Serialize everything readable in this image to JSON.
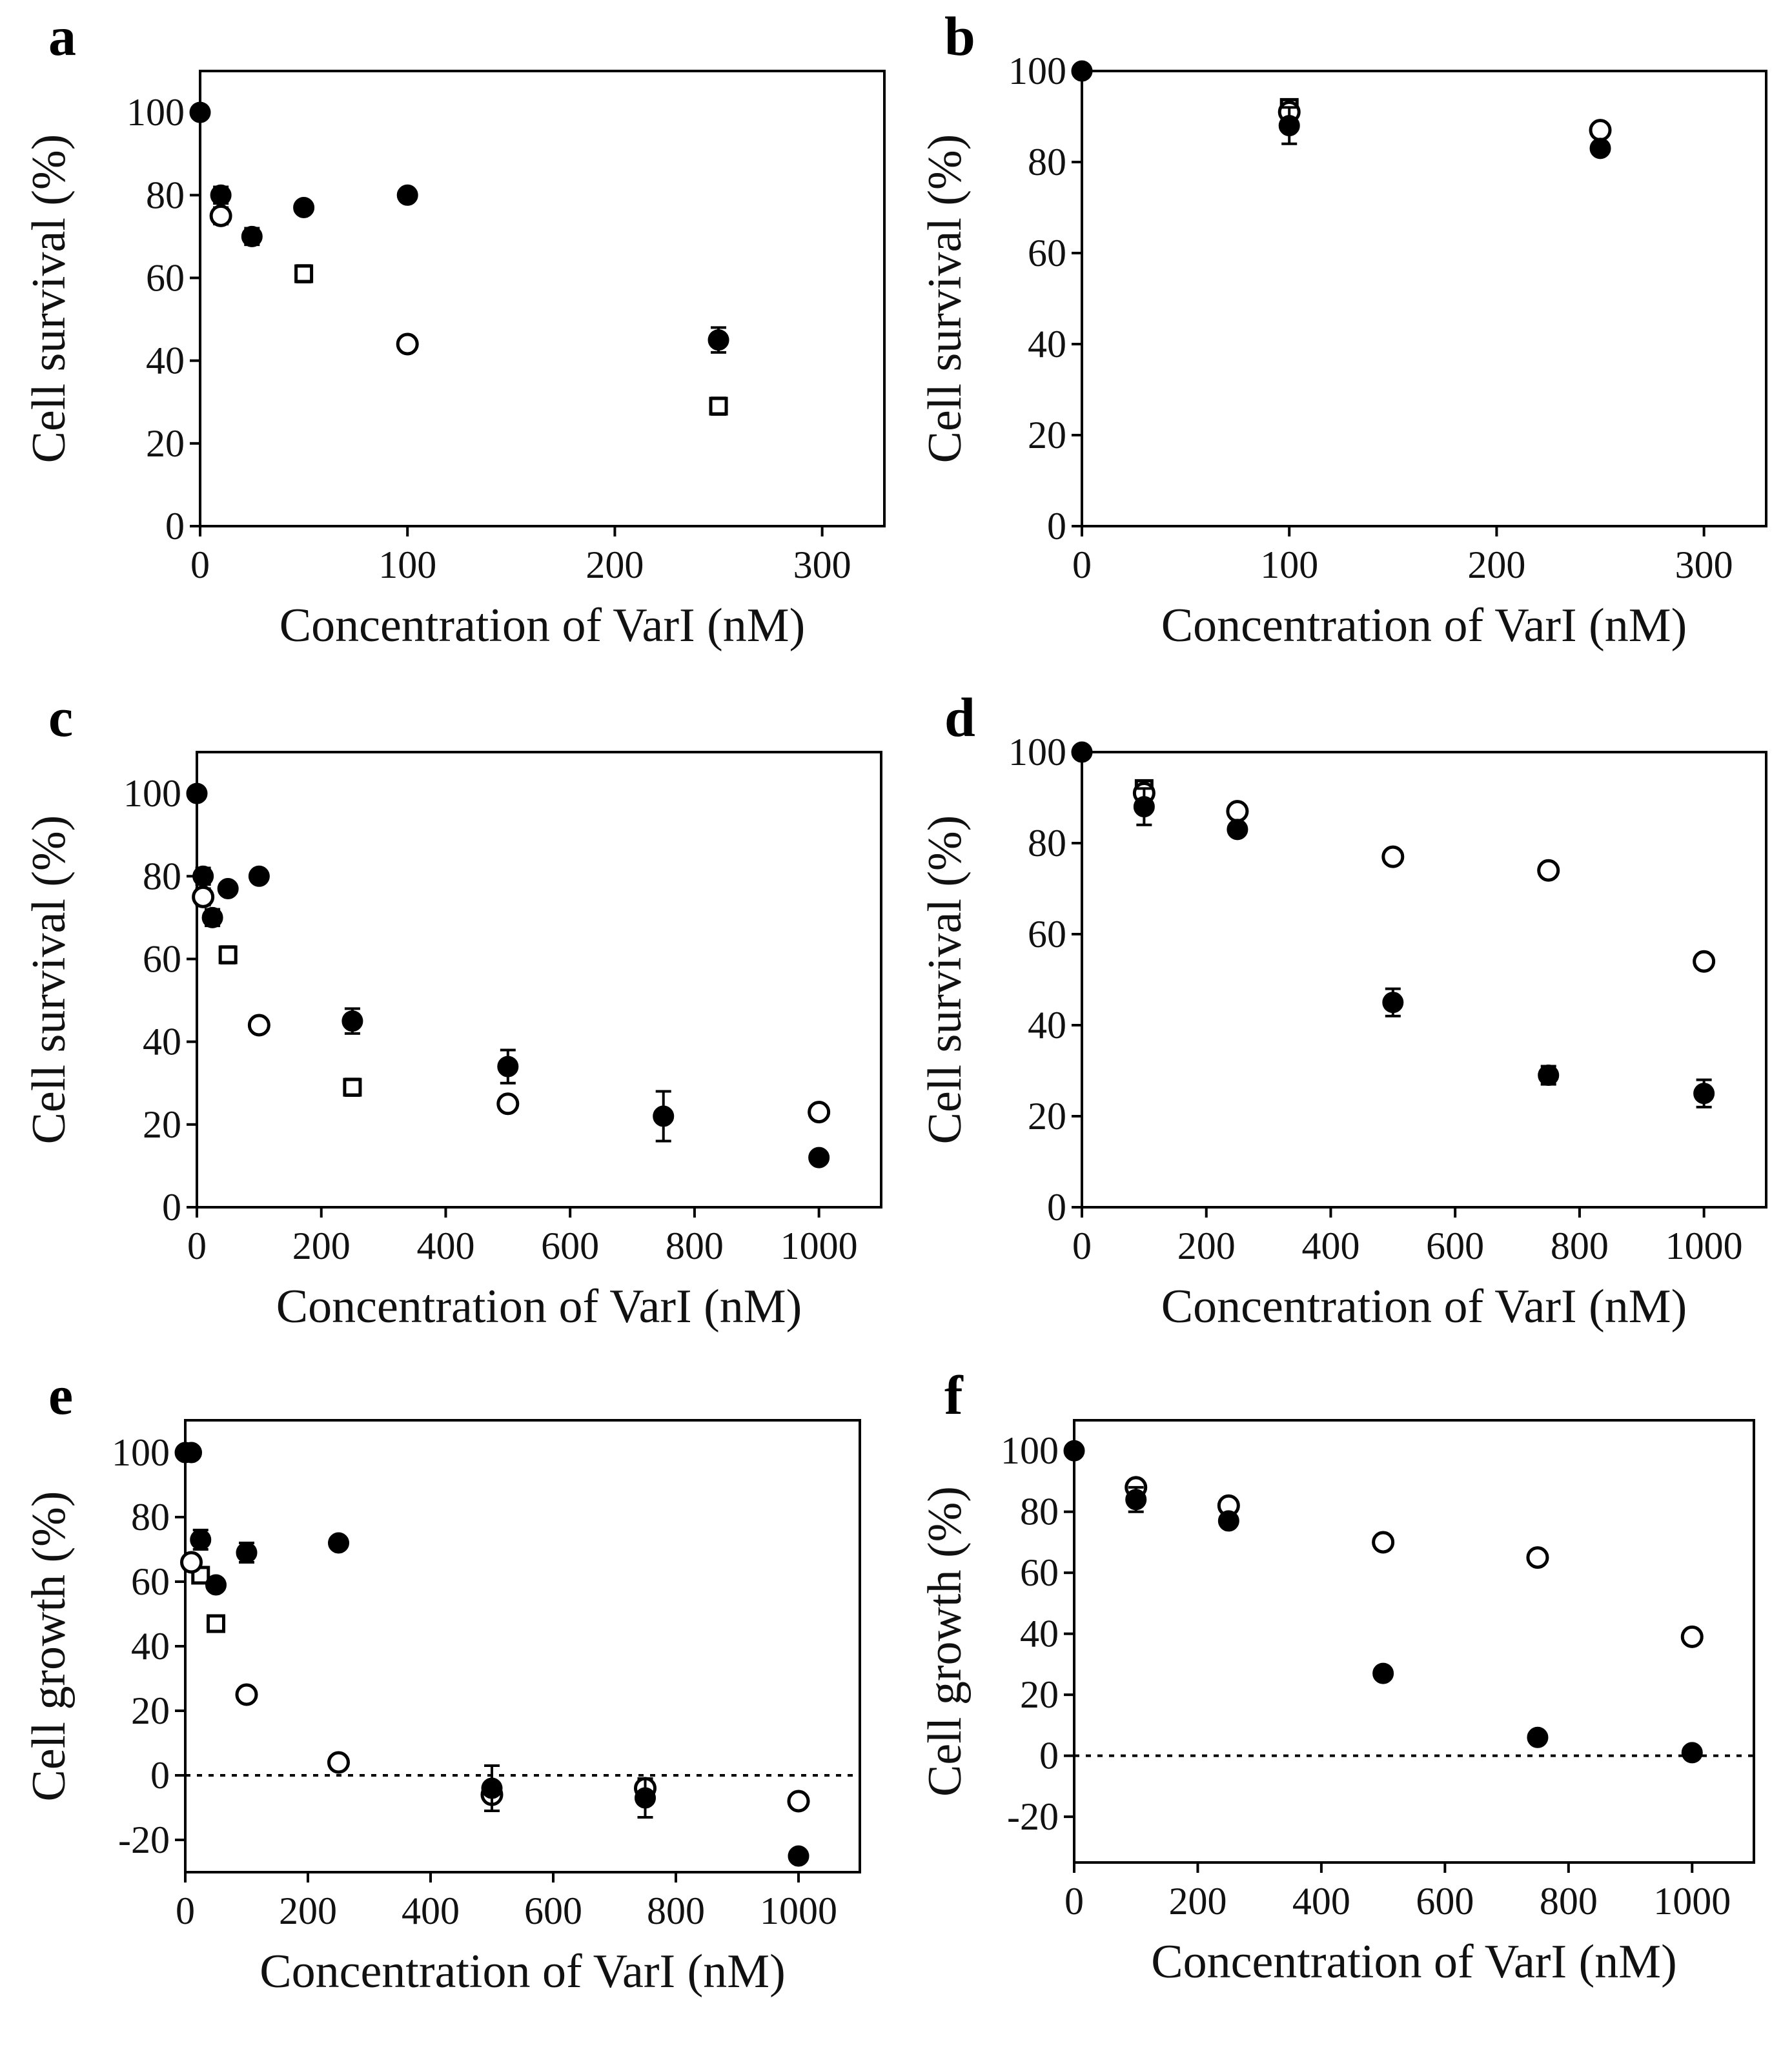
{
  "chart_data": [
    {
      "type": "scatter",
      "panel_label": "a",
      "xlabel": "Concentration of VarI (nM)",
      "ylabel": "Cell survival (%)",
      "xlim": [
        0,
        330
      ],
      "ylim": [
        0,
        110
      ],
      "xticks": [
        "0",
        "100",
        "200",
        "300"
      ],
      "yticks": [
        "0",
        "20",
        "40",
        "60",
        "80",
        "100"
      ],
      "xtick_values": [
        0,
        100,
        200,
        300
      ],
      "ytick_values": [
        0,
        20,
        40,
        60,
        80,
        100
      ],
      "zero_line": false,
      "series": [
        {
          "name": "filled",
          "marker": "filled-circle",
          "x": [
            0,
            10,
            25,
            50,
            100,
            250
          ],
          "y": [
            100,
            80,
            70,
            77,
            80,
            45
          ],
          "err": [
            0,
            2,
            2,
            1,
            1,
            3
          ]
        },
        {
          "name": "open",
          "marker": "open-circle",
          "x": [
            10,
            100
          ],
          "y": [
            75,
            44
          ],
          "err": [
            2,
            1
          ]
        },
        {
          "name": "square",
          "marker": "open-square",
          "x": [
            50,
            250
          ],
          "y": [
            61,
            29
          ],
          "err": [
            2,
            2
          ]
        }
      ]
    },
    {
      "type": "scatter",
      "panel_label": "b",
      "xlabel": "Concentration of VarI (nM)",
      "ylabel": "Cell survival (%)",
      "xlim": [
        0,
        330
      ],
      "ylim": [
        0,
        100
      ],
      "xticks": [
        "0",
        "100",
        "200",
        "300"
      ],
      "yticks": [
        "0",
        "20",
        "40",
        "60",
        "80",
        "100"
      ],
      "xtick_values": [
        0,
        100,
        200,
        300
      ],
      "ytick_values": [
        0,
        20,
        40,
        60,
        80,
        100
      ],
      "zero_line": false,
      "series": [
        {
          "name": "filled",
          "marker": "filled-circle",
          "x": [
            0,
            100,
            250
          ],
          "y": [
            100,
            88,
            83
          ],
          "err": [
            0,
            4,
            1
          ]
        },
        {
          "name": "open",
          "marker": "open-circle",
          "x": [
            100,
            250
          ],
          "y": [
            91,
            87
          ],
          "err": [
            1,
            1
          ]
        },
        {
          "name": "square",
          "marker": "open-square",
          "x": [
            100
          ],
          "y": [
            92
          ],
          "err": [
            1
          ]
        }
      ]
    },
    {
      "type": "scatter",
      "panel_label": "c",
      "xlabel": "Concentration of VarI (nM)",
      "ylabel": "Cell survival (%)",
      "xlim": [
        0,
        1100
      ],
      "ylim": [
        0,
        110
      ],
      "xticks": [
        "0",
        "200",
        "400",
        "600",
        "800",
        "1000"
      ],
      "yticks": [
        "0",
        "20",
        "40",
        "60",
        "80",
        "100"
      ],
      "xtick_values": [
        0,
        200,
        400,
        600,
        800,
        1000
      ],
      "ytick_values": [
        0,
        20,
        40,
        60,
        80,
        100
      ],
      "zero_line": false,
      "series": [
        {
          "name": "filled",
          "marker": "filled-circle",
          "x": [
            0,
            10,
            25,
            50,
            100,
            250,
            500,
            750,
            1000
          ],
          "y": [
            100,
            80,
            70,
            77,
            80,
            45,
            34,
            22,
            12
          ],
          "err": [
            0,
            2,
            2,
            1,
            1,
            3,
            4,
            6,
            1
          ]
        },
        {
          "name": "open",
          "marker": "open-circle",
          "x": [
            10,
            100,
            500,
            1000
          ],
          "y": [
            75,
            44,
            25,
            23
          ],
          "err": [
            2,
            1,
            1,
            1
          ]
        },
        {
          "name": "square",
          "marker": "open-square",
          "x": [
            50,
            250
          ],
          "y": [
            61,
            29
          ],
          "err": [
            2,
            2
          ]
        }
      ]
    },
    {
      "type": "scatter",
      "panel_label": "d",
      "xlabel": "Concentration of VarI (nM)",
      "ylabel": "Cell survival (%)",
      "xlim": [
        0,
        1100
      ],
      "ylim": [
        0,
        100
      ],
      "xticks": [
        "0",
        "200",
        "400",
        "600",
        "800",
        "1000"
      ],
      "yticks": [
        "0",
        "20",
        "40",
        "60",
        "80",
        "100"
      ],
      "xtick_values": [
        0,
        200,
        400,
        600,
        800,
        1000
      ],
      "ytick_values": [
        0,
        20,
        40,
        60,
        80,
        100
      ],
      "zero_line": false,
      "series": [
        {
          "name": "filled",
          "marker": "filled-circle",
          "x": [
            0,
            100,
            250,
            500,
            750,
            1000
          ],
          "y": [
            100,
            88,
            83,
            45,
            29,
            25
          ],
          "err": [
            0,
            4,
            1,
            3,
            2,
            3
          ]
        },
        {
          "name": "open",
          "marker": "open-circle",
          "x": [
            100,
            250,
            500,
            750,
            1000
          ],
          "y": [
            91,
            87,
            77,
            74,
            54
          ],
          "err": [
            1,
            1,
            1,
            1,
            1
          ]
        },
        {
          "name": "square",
          "marker": "open-square",
          "x": [
            100
          ],
          "y": [
            92
          ],
          "err": [
            1
          ]
        }
      ]
    },
    {
      "type": "scatter",
      "panel_label": "e",
      "xlabel": "Concentration of VarI (nM)",
      "ylabel": "Cell growth (%)",
      "xlim": [
        0,
        1100
      ],
      "ylim": [
        -30,
        110
      ],
      "xticks": [
        "0",
        "200",
        "400",
        "600",
        "800",
        "1000"
      ],
      "yticks": [
        "-20",
        "0",
        "20",
        "40",
        "60",
        "80",
        "100"
      ],
      "xtick_values": [
        0,
        200,
        400,
        600,
        800,
        1000
      ],
      "ytick_values": [
        -20,
        0,
        20,
        40,
        60,
        80,
        100
      ],
      "zero_line": true,
      "series": [
        {
          "name": "filled",
          "marker": "filled-circle",
          "x": [
            0,
            10,
            25,
            50,
            100,
            250,
            500,
            750,
            1000
          ],
          "y": [
            100,
            100,
            73,
            59,
            69,
            72,
            -4,
            -7,
            -25
          ],
          "err": [
            0,
            0,
            3,
            1,
            3,
            1,
            7,
            6,
            1
          ]
        },
        {
          "name": "open",
          "marker": "open-circle",
          "x": [
            10,
            100,
            250,
            500,
            750,
            1000
          ],
          "y": [
            66,
            25,
            4,
            -6,
            -4,
            -8
          ],
          "err": [
            2,
            1,
            1,
            2,
            2,
            1
          ]
        },
        {
          "name": "square",
          "marker": "open-square",
          "x": [
            25,
            50
          ],
          "y": [
            62,
            47
          ],
          "err": [
            2,
            2
          ]
        }
      ]
    },
    {
      "type": "scatter",
      "panel_label": "f",
      "xlabel": "Concentration of VarI (nM)",
      "ylabel": "Cell growth (%)",
      "xlim": [
        0,
        1100
      ],
      "ylim": [
        -35,
        110
      ],
      "xticks": [
        "0",
        "200",
        "400",
        "600",
        "800",
        "1000"
      ],
      "yticks": [
        "-20",
        "0",
        "20",
        "40",
        "60",
        "80",
        "100"
      ],
      "xtick_values": [
        0,
        200,
        400,
        600,
        800,
        1000
      ],
      "ytick_values": [
        -20,
        0,
        20,
        40,
        60,
        80,
        100
      ],
      "zero_line": true,
      "series": [
        {
          "name": "filled",
          "marker": "filled-circle",
          "x": [
            0,
            100,
            250,
            500,
            750,
            1000
          ],
          "y": [
            100,
            84,
            77,
            27,
            6,
            1
          ],
          "err": [
            0,
            4,
            1,
            1,
            1,
            1
          ]
        },
        {
          "name": "open",
          "marker": "open-circle",
          "x": [
            100,
            250,
            500,
            750,
            1000
          ],
          "y": [
            88,
            82,
            70,
            65,
            39
          ],
          "err": [
            1,
            1,
            1,
            1,
            1
          ]
        }
      ]
    }
  ]
}
